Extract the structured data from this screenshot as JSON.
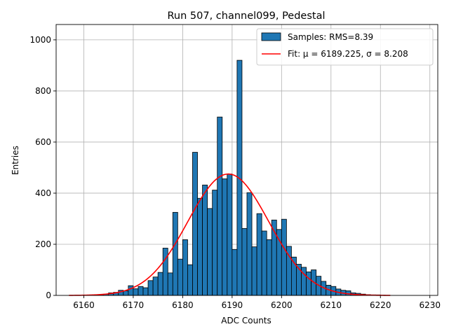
{
  "chart_data": {
    "type": "bar",
    "title": "Run 507, channel099, Pedestal",
    "xlabel": "ADC Counts",
    "ylabel": "Entries",
    "xlim": [
      6154.4,
      6231.6
    ],
    "ylim": [
      0,
      1060
    ],
    "x_ticks": [
      6160,
      6170,
      6180,
      6190,
      6200,
      6210,
      6220,
      6230
    ],
    "y_ticks": [
      0,
      200,
      400,
      600,
      800,
      1000
    ],
    "grid": true,
    "legend_position": "top-right",
    "bin_width": 1,
    "bin_start": 6157,
    "values": [
      0,
      0,
      0,
      0,
      0,
      1,
      3,
      5,
      10,
      12,
      20,
      18,
      38,
      26,
      35,
      30,
      58,
      72,
      90,
      185,
      88,
      325,
      142,
      218,
      120,
      560,
      380,
      432,
      340,
      412,
      698,
      456,
      475,
      180,
      920,
      262,
      402,
      190,
      320,
      252,
      218,
      295,
      258,
      298,
      192,
      150,
      122,
      110,
      92,
      100,
      75,
      55,
      40,
      35,
      25,
      20,
      18,
      10,
      8,
      5,
      3,
      2,
      2,
      1,
      0,
      0,
      0,
      0,
      0,
      0,
      0,
      0
    ],
    "series": [
      {
        "name": "Samples: RMS=8.39",
        "kind": "histogram",
        "color": "#1f77b4"
      },
      {
        "name": "Fit: μ = 6189.225, σ = 8.208",
        "kind": "gaussian",
        "color": "#ff0000",
        "mu": 6189.225,
        "sigma": 8.208,
        "amplitude": 475,
        "x_range": [
          6157,
          6222
        ]
      }
    ]
  }
}
